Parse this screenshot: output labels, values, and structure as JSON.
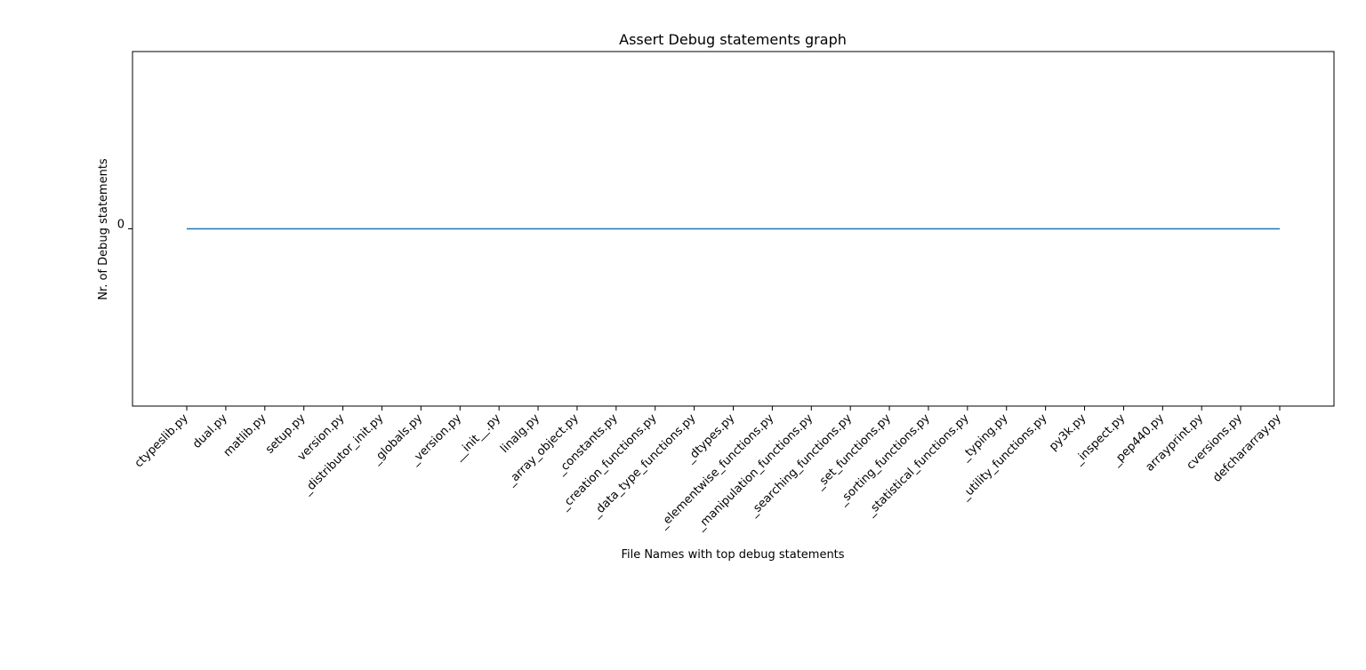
{
  "chart_data": {
    "type": "line",
    "title": "Assert Debug statements graph",
    "xlabel": "File Names with top debug statements",
    "ylabel": "Nr. of Debug statements",
    "categories": [
      "ctypeslib.py",
      "dual.py",
      "matlib.py",
      "setup.py",
      "version.py",
      "_distributor_init.py",
      "_globals.py",
      "_version.py",
      "__init__.py",
      "linalg.py",
      "_array_object.py",
      "_constants.py",
      "_creation_functions.py",
      "_data_type_functions.py",
      "_dtypes.py",
      "_elementwise_functions.py",
      "_manipulation_functions.py",
      "_searching_functions.py",
      "_set_functions.py",
      "_sorting_functions.py",
      "_statistical_functions.py",
      "_typing.py",
      "_utility_functions.py",
      "py3k.py",
      "_inspect.py",
      "_pep440.py",
      "arrayprint.py",
      "cversions.py",
      "defchararray.py"
    ],
    "series": [
      {
        "values": [
          0,
          0,
          0,
          0,
          0,
          0,
          0,
          0,
          0,
          0,
          0,
          0,
          0,
          0,
          0,
          0,
          0,
          0,
          0,
          0,
          0,
          0,
          0,
          0,
          0,
          0,
          0,
          0,
          0
        ]
      }
    ],
    "yticks": [
      0
    ],
    "ylim": [
      -0.05,
      0.05
    ],
    "grid": false,
    "line_color": "#1f77b4"
  }
}
